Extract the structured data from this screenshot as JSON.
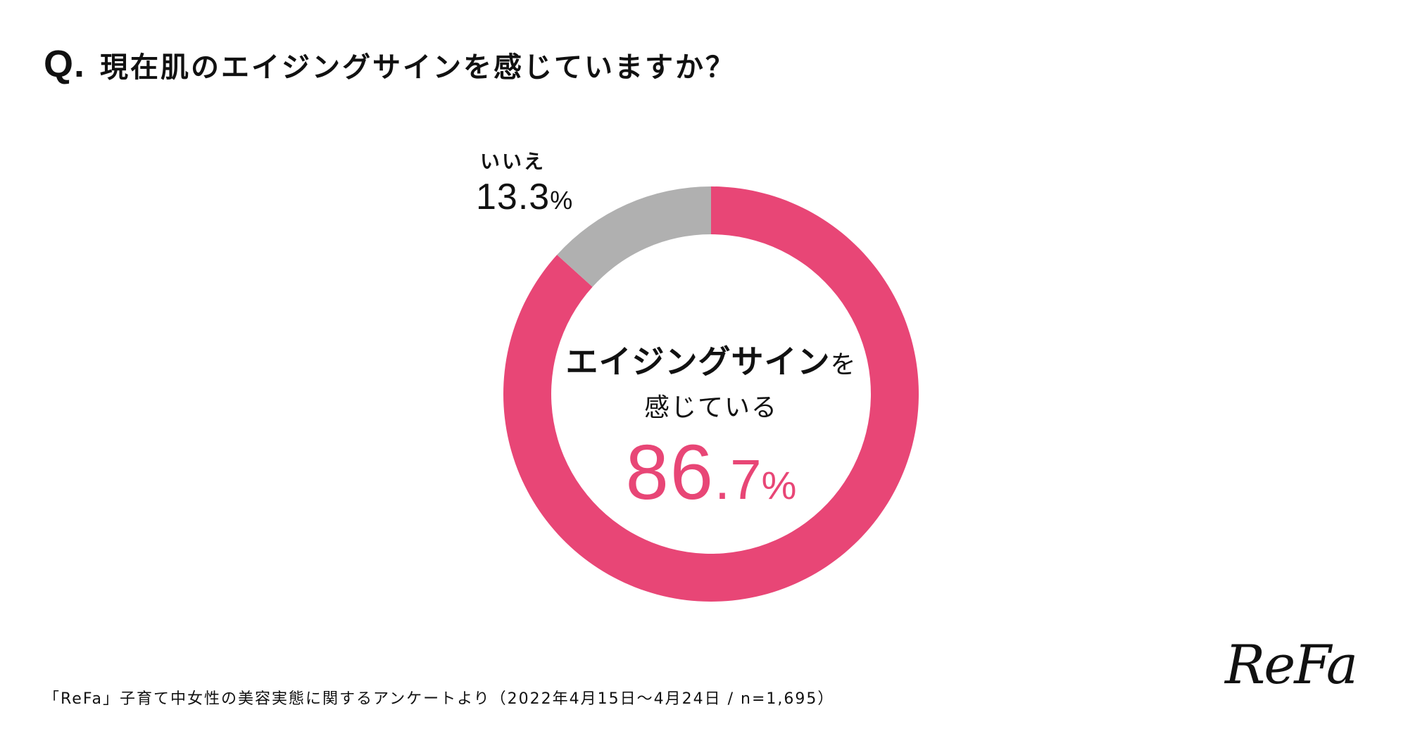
{
  "question": {
    "mark": "Q",
    "dot": ".",
    "text": "現在肌のエイジングサインを感じていますか？"
  },
  "chart_data": {
    "type": "pie",
    "donut": true,
    "slices": [
      {
        "label": "エイジングサインを感じている",
        "value": 86.7,
        "color": "#E84676"
      },
      {
        "label": "いいえ",
        "value": 13.3,
        "color": "#B0B0B0"
      }
    ]
  },
  "labels": {
    "no_label": "いいえ",
    "no_value": "13.3",
    "no_pct": "%",
    "center_line1_bold": "エイジングサイン",
    "center_line1_small": "を",
    "center_line2": "感じている",
    "center_value_int": "86",
    "center_value_dec": ".7",
    "center_value_pct": "%"
  },
  "source": "「ReFa」子育て中女性の美容実態に関するアンケートより（2022年4月15日～4月24日 / n=1,695）",
  "logo": "ReFa"
}
